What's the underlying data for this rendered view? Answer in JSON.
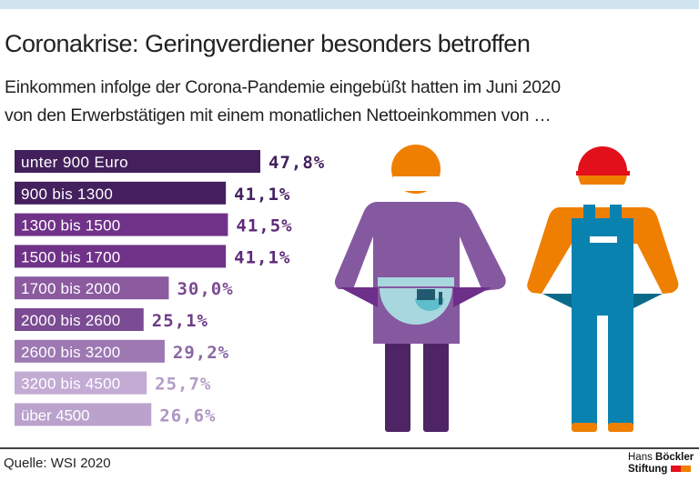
{
  "header": {
    "title": "Coronakrise: Geringverdiener besonders betroffen",
    "subtitle_line1": "Einkommen infolge der Corona-Pandemie eingebüßt hatten im Juni 2020",
    "subtitle_line2": "von den Erwerbstätigen mit einem monatlichen Nettoeinkommen von …"
  },
  "chart_data": {
    "type": "bar",
    "orientation": "horizontal",
    "categories": [
      "unter 900 Euro",
      "900 bis 1300",
      "1300 bis 1500",
      "1500 bis 1700",
      "1700 bis 2000",
      "2000 bis 2600",
      "2600 bis 3200",
      "3200 bis 4500",
      "über 4500"
    ],
    "values": [
      47.8,
      41.1,
      41.5,
      41.1,
      30.0,
      25.1,
      29.2,
      25.7,
      26.6
    ],
    "value_labels": [
      "47,8 %",
      "41,1 %",
      "41,5 %",
      "41,1 %",
      "30,0 %",
      "25,1 %",
      "29,2 %",
      "25,7 %",
      "26,6 %"
    ],
    "colors": [
      "#43205c",
      "#44205e",
      "#6f3288",
      "#6f3288",
      "#8b5a9f",
      "#7b4b93",
      "#9d78b2",
      "#c3abd4",
      "#bba2cd"
    ],
    "label_colors": [
      "#43205c",
      "#44205e",
      "#5e2a78",
      "#5e2a78",
      "#7b4b93",
      "#6c3d86",
      "#8b68a2",
      "#b49bc8",
      "#ad94c2"
    ],
    "grid": false
  },
  "illustration": {
    "figure_colors": {
      "purple": "#8559a0",
      "dark_purple": "#4e2465",
      "orange": "#ee7f00",
      "red": "#e2101a",
      "blue": "#0a82b0",
      "light_blue": "#a9d7df"
    }
  },
  "footer": {
    "source": "Quelle: WSI 2020",
    "logo_line1_a": "Hans ",
    "logo_line1_b": "Böckler",
    "logo_line2": "Stiftung",
    "logo_colors": [
      "#e2101a",
      "#ee7f00"
    ]
  }
}
